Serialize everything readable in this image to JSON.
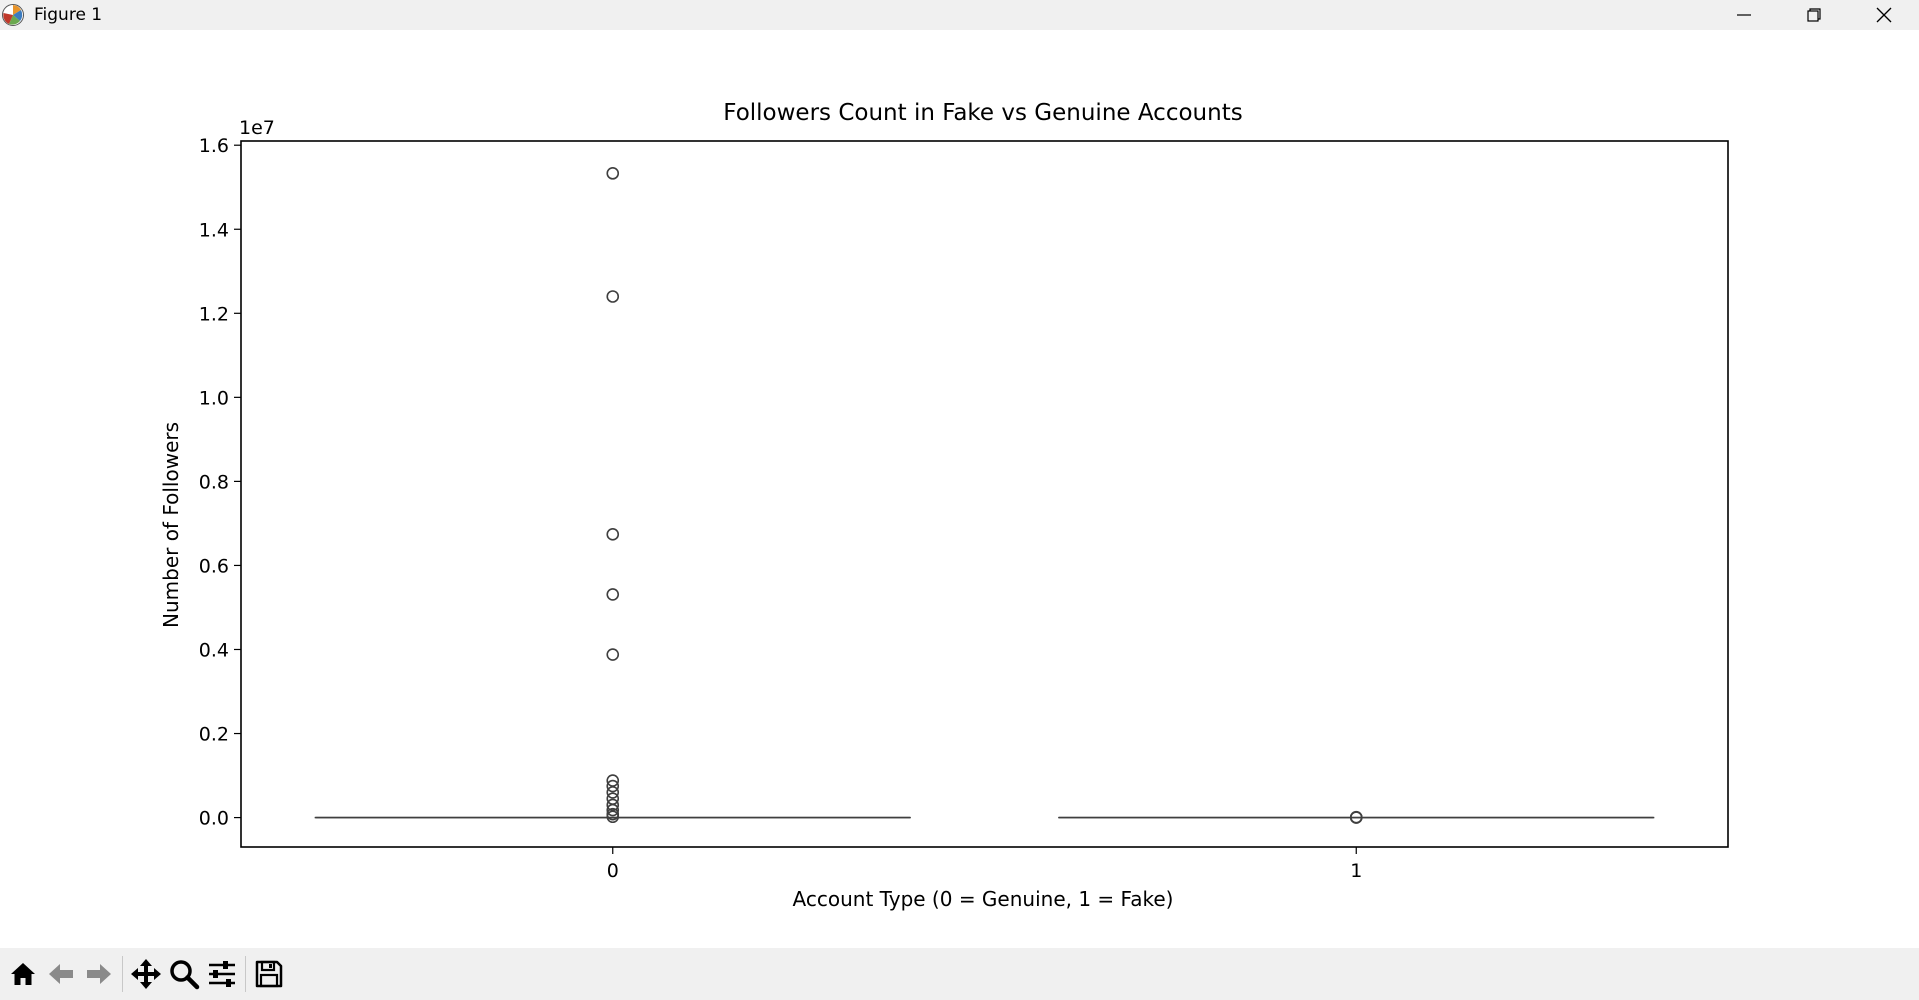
{
  "window": {
    "title": "Figure 1",
    "app_icon": "matplotlib-logo-icon",
    "controls": [
      "minimize-icon",
      "restore-icon",
      "close-icon"
    ]
  },
  "toolbar": {
    "tools": [
      "home-icon",
      "back-arrow-icon",
      "forward-arrow-icon",
      "pan-move-icon",
      "zoom-magnifier-icon",
      "configure-subplots-icon",
      "save-floppy-icon"
    ]
  },
  "chart_data": {
    "type": "box",
    "title": "Followers Count in Fake vs Genuine Accounts",
    "xlabel": "Account Type (0 = Genuine, 1 = Fake)",
    "ylabel": "Number of Followers",
    "y_offset_label": "1e7",
    "categories": [
      "0",
      "1"
    ],
    "ylim": [
      -0.07,
      1.61
    ],
    "yticks": [
      0.0,
      0.2,
      0.4,
      0.6,
      0.8,
      1.0,
      1.2,
      1.4,
      1.6
    ],
    "ytick_labels": [
      "0.0",
      "0.2",
      "0.4",
      "0.6",
      "0.8",
      "1.0",
      "1.2",
      "1.4",
      "1.6"
    ],
    "grid": false,
    "boxes": [
      {
        "category": "0",
        "median": 0.0,
        "q1": 0.0,
        "q3": 0.0,
        "outliers": [
          1.533,
          1.24,
          0.674,
          0.531,
          0.388,
          0.088,
          0.075,
          0.06,
          0.045,
          0.03,
          0.018,
          0.008,
          0.002
        ]
      },
      {
        "category": "1",
        "median": 0.0,
        "q1": 0.0,
        "q3": 0.0,
        "outliers": [
          0.001,
          0.0005,
          0.0
        ]
      }
    ]
  }
}
